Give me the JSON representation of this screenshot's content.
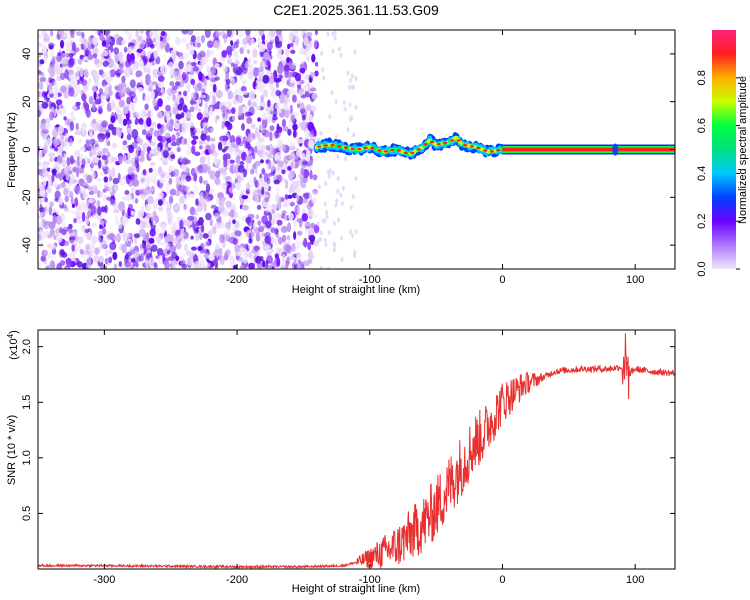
{
  "title": "C2E1.2025.361.11.53.G09",
  "chart_data": [
    {
      "type": "heatmap",
      "xlabel": "Height of straight line (km)",
      "ylabel": "Frequency (Hz)",
      "xlim": [
        -350,
        130
      ],
      "ylim": [
        -50,
        50
      ],
      "xticks": [
        -300,
        -200,
        -100,
        0,
        100
      ],
      "yticks": [
        -40,
        -20,
        0,
        20,
        40
      ],
      "noise_region_x": [
        -350,
        -140
      ],
      "signal_track": {
        "x": [
          -140,
          -130,
          -120,
          -110,
          -100,
          -90,
          -80,
          -70,
          -60,
          -55,
          -50,
          -40,
          -35,
          -30,
          -20,
          -10,
          0,
          10,
          50,
          85,
          100,
          130
        ],
        "y": [
          1,
          2,
          1,
          0,
          1,
          -1,
          0,
          -2,
          1,
          4,
          2,
          3,
          5,
          2,
          1,
          -1,
          0,
          0,
          0,
          0,
          0,
          0
        ]
      },
      "colorbar": {
        "label": "Normalized spectral amplitude",
        "range": [
          0,
          1
        ],
        "ticks": [
          0.0,
          0.2,
          0.4,
          0.6,
          0.8
        ],
        "colors": [
          "#f0e6fa",
          "#6a00ff",
          "#0040ff",
          "#00c8ff",
          "#00ff40",
          "#c8ff00",
          "#ffb000",
          "#ff2020",
          "#ff2080"
        ]
      }
    },
    {
      "type": "line",
      "xlabel": "Height of straight line (km)",
      "ylabel": "SNR (10 * v/v)",
      "yscale_label": "(x10",
      "yscale_exp": "4",
      "yscale_close": ")",
      "xlim": [
        -350,
        130
      ],
      "ylim": [
        0,
        2.15
      ],
      "xticks": [
        -300,
        -200,
        -100,
        0,
        100
      ],
      "yticks": [
        0.5,
        1.0,
        1.5,
        2.0
      ],
      "ytick_labels": [
        "0.5",
        "1.0",
        "1.5",
        "2.0"
      ],
      "color": "#e83030",
      "series": [
        {
          "x": [
            -350,
            -300,
            -250,
            -200,
            -150,
            -120,
            -110,
            -100,
            -90,
            -80,
            -70,
            -60,
            -50,
            -45,
            -40,
            -35,
            -30,
            -25,
            -20,
            -15,
            -10,
            -5,
            0,
            5,
            10,
            15,
            20,
            30,
            40,
            60,
            80,
            90,
            92,
            95,
            100,
            110,
            120,
            130
          ],
          "values": [
            0.03,
            0.03,
            0.025,
            0.02,
            0.02,
            0.03,
            0.06,
            0.1,
            0.15,
            0.2,
            0.3,
            0.4,
            0.55,
            0.65,
            0.75,
            0.85,
            0.95,
            1.05,
            1.15,
            1.2,
            1.3,
            1.4,
            1.5,
            1.55,
            1.6,
            1.65,
            1.68,
            1.72,
            1.78,
            1.8,
            1.8,
            1.82,
            1.9,
            1.75,
            1.8,
            1.78,
            1.77,
            1.76
          ]
        }
      ]
    }
  ]
}
